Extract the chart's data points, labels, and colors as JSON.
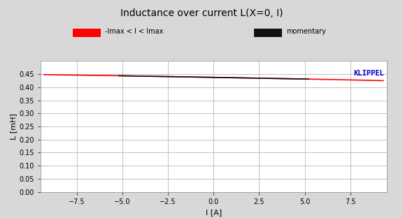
{
  "title": "Inductance over current L(X=0, I)",
  "xlabel": "I [A]",
  "ylabel": "L [mH]",
  "xlim": [
    -9.5,
    9.5
  ],
  "ylim": [
    0.0,
    0.5
  ],
  "yticks": [
    0.0,
    0.05,
    0.1,
    0.15,
    0.2,
    0.25,
    0.3,
    0.35,
    0.4,
    0.45
  ],
  "xticks": [
    -7.5,
    -5.0,
    -2.5,
    0.0,
    2.5,
    5.0,
    7.5
  ],
  "bg_color": "#d8d8d8",
  "plot_bg_color": "#ffffff",
  "grid_color": "#aaaaaa",
  "red_color": "#ff0000",
  "black_color": "#111111",
  "blue_color": "#0000cc",
  "legend1_label": "-Imax < I < Imax",
  "legend2_label": "momentary",
  "klippel_label": "KLIPPEL",
  "title_fontsize": 10,
  "axis_fontsize": 8,
  "tick_fontsize": 7
}
